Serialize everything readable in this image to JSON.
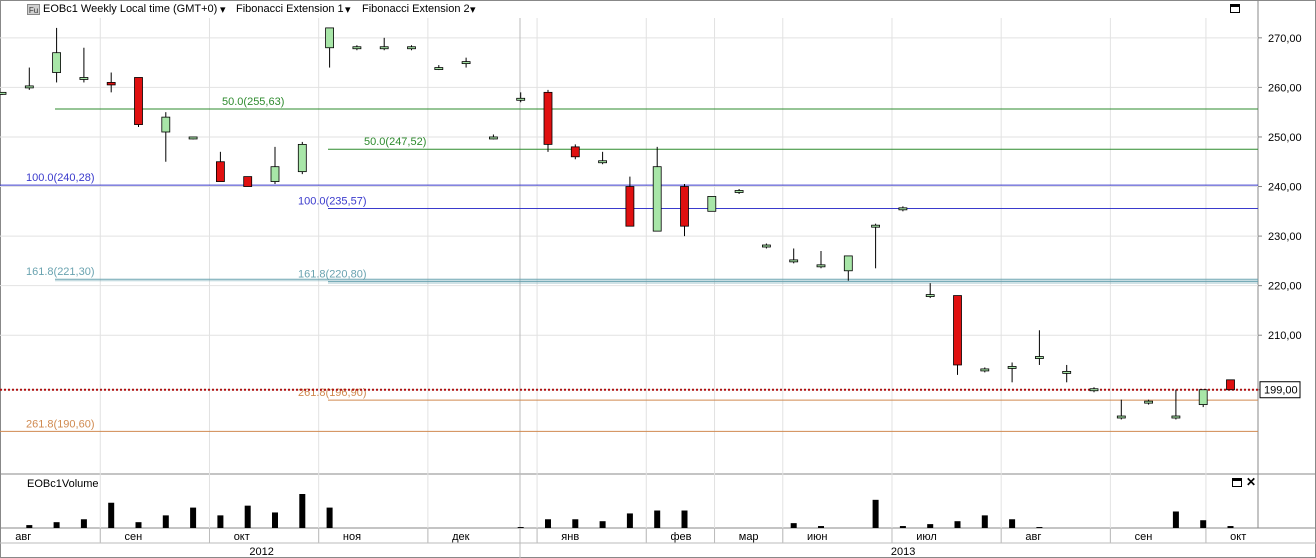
{
  "header": {
    "instrument": "EOBc1 Weekly Local time (GMT+0)",
    "fib1": "Fibonacci Extension 1",
    "fib2": "Fibonacci Extension 2",
    "icon": "Fu"
  },
  "volume_panel": {
    "title": "EOBc1Volume"
  },
  "price_label": "199,00",
  "colors": {
    "up": "#a8e6a8",
    "down": "#e01010",
    "fib50": "#2e8b2e",
    "fib100": "#3a3acc",
    "fib161": "#6aa3b0",
    "fib261": "#d08a50",
    "price_line": "#b01010"
  },
  "chart_data": {
    "type": "candlestick",
    "ylim": [
      182,
      274
    ],
    "y_ticks": [
      "270,00",
      "260,00",
      "250,00",
      "240,00",
      "230,00",
      "220,00",
      "210,00",
      "199,00"
    ],
    "y_tick_values": [
      270,
      260,
      250,
      240,
      230,
      220,
      210,
      199
    ],
    "months": [
      {
        "label": "авг",
        "index": 1
      },
      {
        "label": "сен",
        "index": 5
      },
      {
        "label": "окт",
        "index": 9
      },
      {
        "label": "ноя",
        "index": 13
      },
      {
        "label": "дек",
        "index": 17
      },
      {
        "label": "янв",
        "index": 21
      },
      {
        "label": "фев",
        "index": 25
      },
      {
        "label": "мар",
        "index": 27.5
      },
      {
        "label": "июн",
        "index": 30
      },
      {
        "label": "июл",
        "index": 34
      },
      {
        "label": "авг",
        "index": 38
      },
      {
        "label": "сен",
        "index": 42
      },
      {
        "label": "окт",
        "index": 45.5
      }
    ],
    "years": [
      {
        "label": "2012",
        "index": 9.5
      },
      {
        "label": "2013",
        "index": 33
      }
    ],
    "fibonacci": [
      {
        "label": "50.0(255,63)",
        "value": 255.63,
        "level": "50",
        "from": 2,
        "group": 1
      },
      {
        "label": "100.0(240,28)",
        "value": 240.28,
        "level": "100",
        "from": 0,
        "group": 1
      },
      {
        "label": "161.8(221,30)",
        "value": 221.3,
        "level": "161",
        "from": 2,
        "group": 1
      },
      {
        "label": "261.8(190,60)",
        "value": 190.6,
        "level": "261",
        "from": 0,
        "group": 1
      },
      {
        "label": "50.0(247,52)",
        "value": 247.52,
        "level": "50",
        "from": 12,
        "group": 2
      },
      {
        "label": "100.0(235,57)",
        "value": 235.57,
        "level": "100",
        "from": 10,
        "group": 2
      },
      {
        "label": "161.8(220,80)",
        "value": 220.8,
        "level": "161",
        "from": 12,
        "group": 2
      },
      {
        "label": "261.8(196,90)",
        "value": 196.9,
        "level": "261",
        "from": 10,
        "group": 2
      }
    ],
    "last_price": 199.0,
    "candles": [
      {
        "o": 259,
        "h": 259,
        "l": 258.5,
        "c": 259
      },
      {
        "o": 260,
        "h": 264,
        "l": 259.5,
        "c": 260.3
      },
      {
        "o": 263,
        "h": 272,
        "l": 261,
        "c": 267
      },
      {
        "o": 262,
        "h": 268,
        "l": 261,
        "c": 262
      },
      {
        "o": 261,
        "h": 263,
        "l": 259,
        "c": 260.5
      },
      {
        "o": 262,
        "h": 262,
        "l": 252,
        "c": 252.5
      },
      {
        "o": 251,
        "h": 255,
        "l": 245,
        "c": 254
      },
      {
        "o": 250,
        "h": 250,
        "l": 249.5,
        "c": 250
      },
      {
        "o": 245,
        "h": 247,
        "l": 241,
        "c": 241
      },
      {
        "o": 242,
        "h": 242,
        "l": 240,
        "c": 240
      },
      {
        "o": 241,
        "h": 248,
        "l": 240.5,
        "c": 244
      },
      {
        "o": 243,
        "h": 249,
        "l": 242.5,
        "c": 248.5
      },
      {
        "o": 268,
        "h": 272,
        "l": 264,
        "c": 272
      },
      {
        "o": 268,
        "h": 268.5,
        "l": 267.5,
        "c": 268.2
      },
      {
        "o": 268,
        "h": 270,
        "l": 267.5,
        "c": 268.2
      },
      {
        "o": 268,
        "h": 268.5,
        "l": 267.5,
        "c": 268.2
      },
      {
        "o": 264,
        "h": 264.5,
        "l": 263.5,
        "c": 264
      },
      {
        "o": 265,
        "h": 266,
        "l": 264,
        "c": 265.2
      },
      {
        "o": 250,
        "h": 250.5,
        "l": 249.5,
        "c": 250
      },
      {
        "o": 257.5,
        "h": 259,
        "l": 257,
        "c": 257.8
      },
      {
        "o": 259,
        "h": 259.5,
        "l": 247,
        "c": 248.5
      },
      {
        "o": 248,
        "h": 248.5,
        "l": 245.5,
        "c": 246
      },
      {
        "o": 245,
        "h": 247,
        "l": 244.5,
        "c": 245.2
      },
      {
        "o": 240,
        "h": 242,
        "l": 232,
        "c": 232
      },
      {
        "o": 231,
        "h": 248,
        "l": 231,
        "c": 244
      },
      {
        "o": 240,
        "h": 240.5,
        "l": 230,
        "c": 232
      },
      {
        "o": 235,
        "h": 238,
        "l": 235,
        "c": 238
      },
      {
        "o": 239,
        "h": 239.5,
        "l": 238.5,
        "c": 239.2
      },
      {
        "o": 228,
        "h": 228.5,
        "l": 227.5,
        "c": 228.2
      },
      {
        "o": 225,
        "h": 227.5,
        "l": 224.5,
        "c": 225.2
      },
      {
        "o": 224,
        "h": 227,
        "l": 223.5,
        "c": 224.2
      },
      {
        "o": 223,
        "h": 226,
        "l": 221,
        "c": 226
      },
      {
        "o": 232,
        "h": 232.5,
        "l": 223.5,
        "c": 232.2
      },
      {
        "o": 235.5,
        "h": 236,
        "l": 235,
        "c": 235.7
      },
      {
        "o": 218,
        "h": 220.5,
        "l": 217.5,
        "c": 218.2
      },
      {
        "o": 218,
        "h": 218,
        "l": 202,
        "c": 204
      },
      {
        "o": 203,
        "h": 203.5,
        "l": 202.5,
        "c": 203.2
      },
      {
        "o": 203.5,
        "h": 204.5,
        "l": 200.5,
        "c": 203.7
      },
      {
        "o": 205.5,
        "h": 211,
        "l": 204,
        "c": 205.7
      },
      {
        "o": 202.5,
        "h": 204,
        "l": 200.5,
        "c": 202.7
      },
      {
        "o": 199,
        "h": 199.5,
        "l": 198.5,
        "c": 199.2
      },
      {
        "o": 193.5,
        "h": 197,
        "l": 193,
        "c": 193.7
      },
      {
        "o": 196.5,
        "h": 197,
        "l": 196,
        "c": 196.7
      },
      {
        "o": 193.5,
        "h": 199,
        "l": 193,
        "c": 193.7
      },
      {
        "o": 196,
        "h": 199,
        "l": 195.5,
        "c": 199
      },
      {
        "o": 201,
        "h": 201,
        "l": 199,
        "c": 199
      }
    ],
    "volume": [
      0,
      0.3,
      0.6,
      0.9,
      2.6,
      0.6,
      1.3,
      2.1,
      1.3,
      2.3,
      1.6,
      3.5,
      2.1,
      0,
      0,
      0,
      0,
      0,
      0,
      0.1,
      0.9,
      0.9,
      0.7,
      1.5,
      1.8,
      1.8,
      0,
      0,
      0,
      0.5,
      0.2,
      0,
      2.9,
      0.2,
      0.4,
      0.7,
      1.3,
      0.9,
      0.1,
      0,
      0,
      0,
      0,
      1.7,
      0.8,
      0.2
    ]
  }
}
